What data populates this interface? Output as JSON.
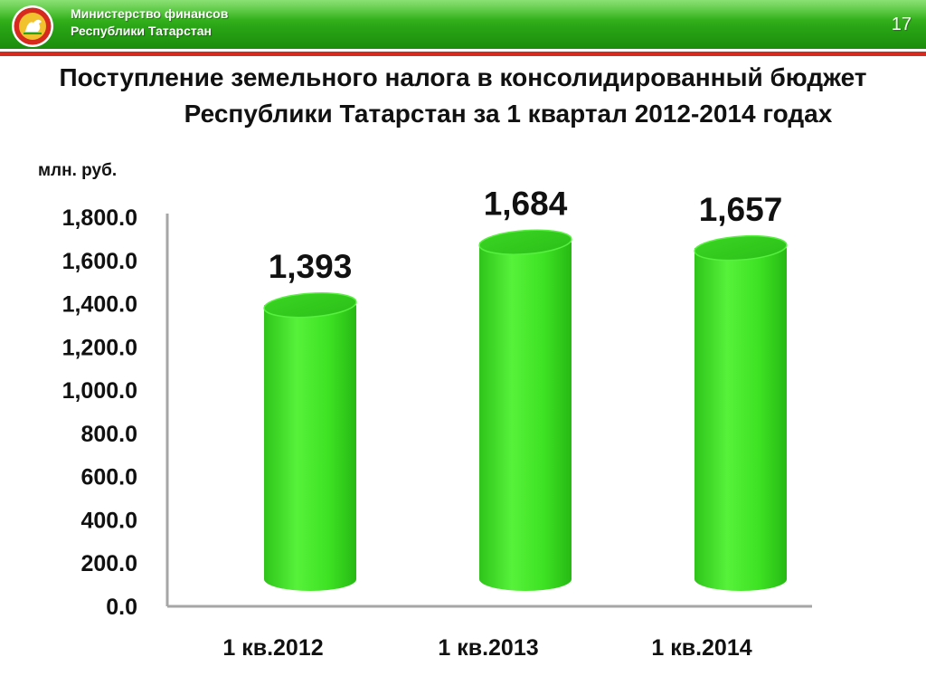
{
  "header": {
    "ministry_line1": "Министерство финансов",
    "ministry_line2": "Республики Татарстан",
    "slide_number": "17",
    "logo_icon": "tatarstan-emblem-icon",
    "colors": {
      "band": "#2aa516",
      "stripe": "#d62a1f"
    }
  },
  "title": {
    "line1": "Поступление земельного налога в консолидированный бюджет",
    "line2": "Республики Татарстан за 1 квартал 2012-2014 годах"
  },
  "chart_data": {
    "type": "bar",
    "ylabel": "млн. руб.",
    "categories": [
      "1 кв.2012",
      "1 кв.2013",
      "1 кв.2014"
    ],
    "values": [
      1393,
      1684,
      1657
    ],
    "value_labels": [
      "1,393",
      "1,684",
      "1,657"
    ],
    "yticks": [
      "0.0",
      "200.0",
      "400.0",
      "600.0",
      "800.0",
      "1,000.0",
      "1,200.0",
      "1,400.0",
      "1,600.0",
      "1,800.0"
    ],
    "ylim": [
      0,
      1800
    ],
    "grid": false,
    "legend": "none",
    "bar_color": "#3ae024",
    "bar_shape": "cylinder"
  }
}
